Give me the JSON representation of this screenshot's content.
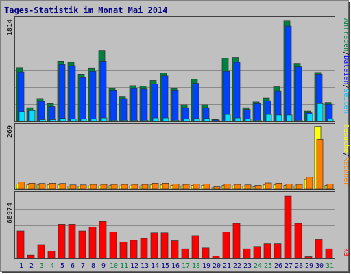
{
  "colors": {
    "background": "#c0c0c0",
    "frame_border": "#808080",
    "grid": "#8a8a8a",
    "title": "#000080",
    "visits_label": "#ff8000",
    "visitors_label": "#ffff00",
    "files_label": "#0000ff",
    "pages_label": "#00c0ff",
    "hits_label": "#008040",
    "kb_label": "#ff0000",
    "weekend_day": "#008040",
    "weekday": "#000080",
    "slash": "#000000"
  },
  "title": "Tages-Statistik im Monat Mai 2014",
  "top_axis_max": "1814",
  "mid_axis_max": "269",
  "bottom_axis_max": "68974",
  "right_labels": {
    "hits": "Anfragen",
    "files": "Dateien",
    "pages": "Seiten",
    "visits": "Besuche",
    "visitors": "Rechner",
    "kb": "kB",
    "sep": "/"
  },
  "chart_data": {
    "type": "bar",
    "title": "Tages-Statistik im Monat Mai 2014",
    "categories": [
      "1",
      "2",
      "3",
      "4",
      "5",
      "6",
      "7",
      "8",
      "9",
      "10",
      "11",
      "12",
      "13",
      "14",
      "15",
      "16",
      "17",
      "18",
      "19",
      "20",
      "21",
      "22",
      "23",
      "24",
      "25",
      "26",
      "27",
      "28",
      "29",
      "30",
      "31"
    ],
    "weekend_days": [
      "3",
      "4",
      "10",
      "11",
      "17",
      "18",
      "24",
      "25",
      "31"
    ],
    "panels": [
      {
        "name": "requests",
        "ylim": [
          0,
          1814
        ],
        "series": [
          {
            "name": "Anfragen",
            "color": "#008040",
            "values": [
              945,
              240,
              400,
              310,
              1060,
              1040,
              830,
              940,
              1250,
              580,
              440,
              630,
              620,
              720,
              850,
              580,
              290,
              740,
              290,
              35,
              1120,
              1130,
              240,
              340,
              410,
              610,
              1780,
              1020,
              180,
              860,
              330
            ]
          },
          {
            "name": "Dateien",
            "color": "#0040ff",
            "values": [
              870,
              180,
              350,
              260,
              1000,
              980,
              770,
              880,
              1060,
              540,
              400,
              580,
              570,
              660,
              800,
              540,
              240,
              670,
              240,
              25,
              880,
              1040,
              210,
              310,
              360,
              530,
              1680,
              960,
              150,
              830,
              300
            ]
          },
          {
            "name": "Seiten",
            "color": "#00e0ff",
            "values": [
              170,
              190,
              30,
              30,
              50,
              40,
              40,
              40,
              60,
              20,
              20,
              20,
              20,
              60,
              60,
              20,
              40,
              50,
              50,
              10,
              120,
              60,
              40,
              20,
              120,
              110,
              110,
              20,
              130,
              310,
              40
            ]
          }
        ]
      },
      {
        "name": "visits",
        "ylim": [
          0,
          269
        ],
        "series": [
          {
            "name": "Besuche",
            "color": "#ff8000",
            "values": [
              30,
              25,
              24,
              25,
              24,
              18,
              18,
              20,
              20,
              20,
              20,
              20,
              20,
              25,
              25,
              22,
              20,
              22,
              22,
              10,
              22,
              20,
              18,
              16,
              26,
              25,
              22,
              20,
              50,
              210,
              22
            ]
          },
          {
            "name": "Rechner",
            "color": "#ffff00",
            "values": [
              22,
              18,
              18,
              18,
              18,
              13,
              12,
              14,
              14,
              15,
              14,
              14,
              14,
              18,
              18,
              16,
              14,
              16,
              16,
              6,
              16,
              14,
              12,
              10,
              18,
              18,
              16,
              14,
              40,
              265,
              16
            ]
          }
        ]
      },
      {
        "name": "traffic",
        "ylim": [
          0,
          68974
        ],
        "series": [
          {
            "name": "kB",
            "color": "#ff0000",
            "values": [
              29000,
              3500,
              14500,
              7500,
              36000,
              36000,
              29000,
              33000,
              39000,
              28000,
              17000,
              19000,
              21000,
              27000,
              27000,
              18500,
              10000,
              24000,
              11000,
              2500,
              28000,
              37000,
              10000,
              12500,
              15500,
              15500,
              66000,
              37000,
              1800,
              20000,
              10000
            ]
          }
        ]
      }
    ]
  }
}
